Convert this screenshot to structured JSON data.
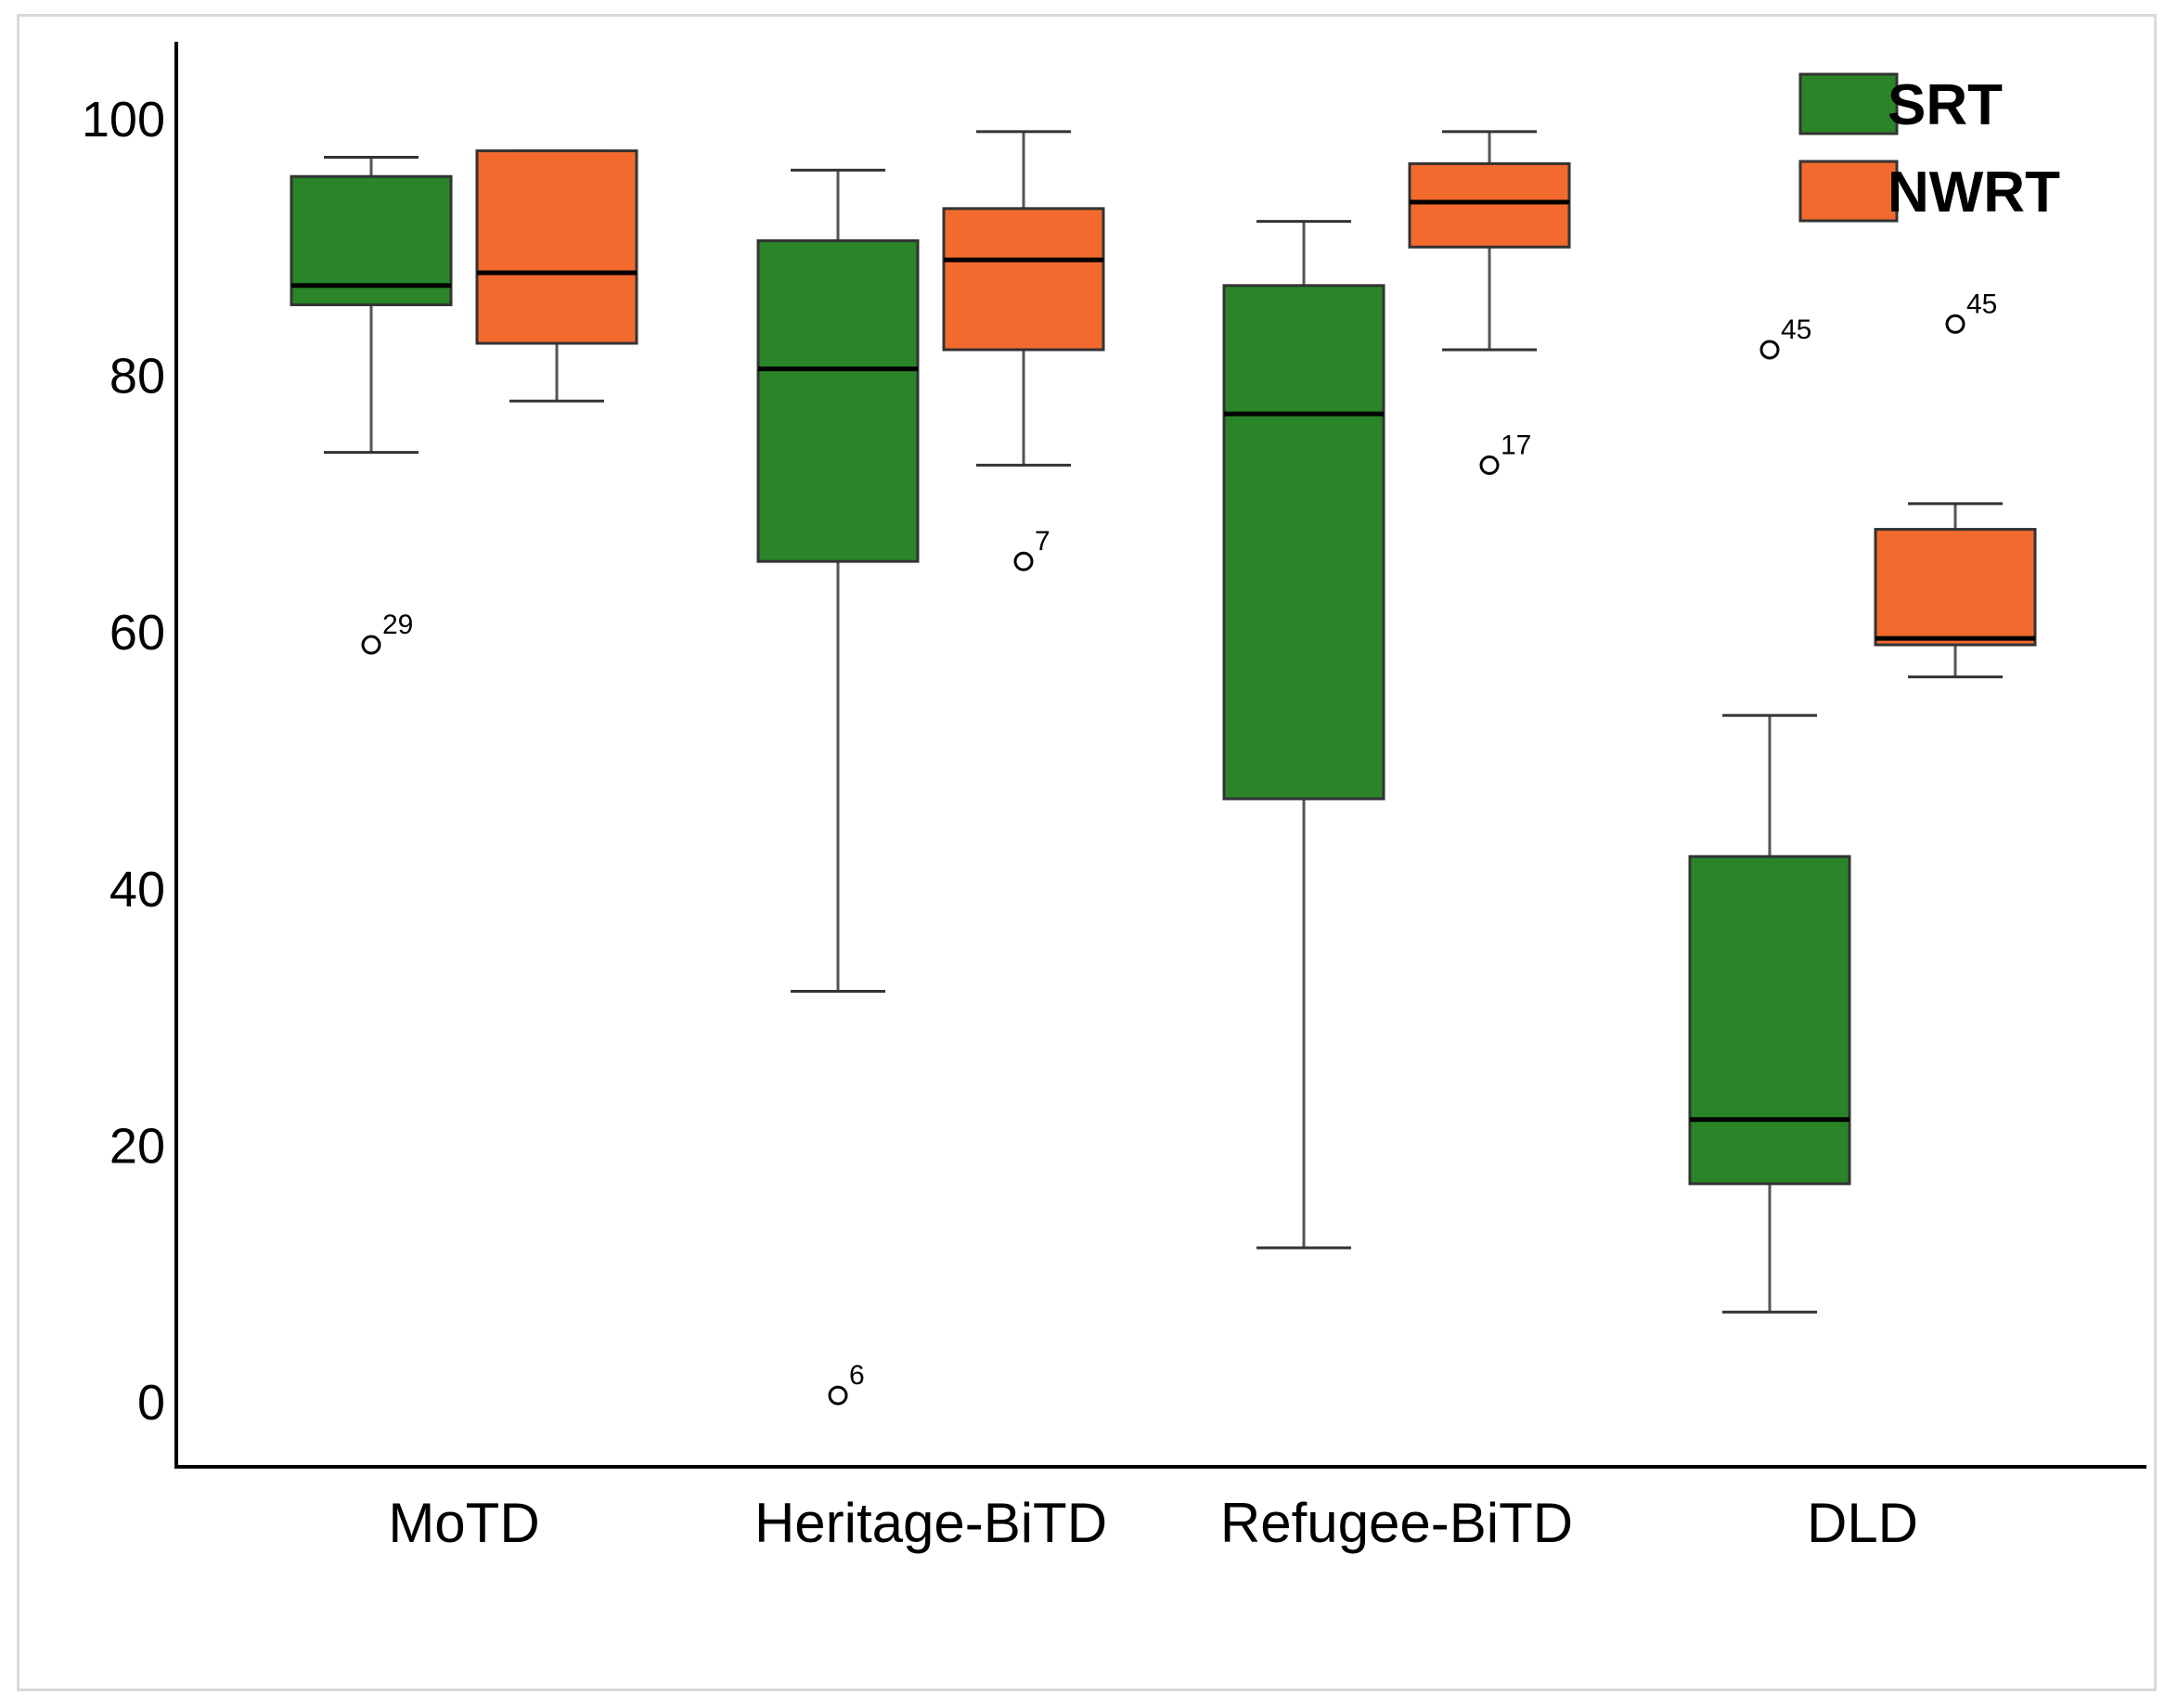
{
  "chart_data": {
    "type": "boxplot",
    "title": "",
    "xlabel": "",
    "ylabel": "",
    "ylim": [
      -5,
      105
    ],
    "yticks": [
      0,
      20,
      40,
      60,
      80,
      100
    ],
    "categories": [
      "MoTD",
      "Heritage-BiTD",
      "Refugee-BiTD",
      "DLD"
    ],
    "legend_position": "top-right",
    "series": [
      {
        "name": "SRT",
        "color": "#2a8428",
        "boxes": [
          {
            "category": "MoTD",
            "whisker_low": 74,
            "q1": 85.5,
            "median": 87,
            "q3": 95.5,
            "whisker_high": 97,
            "outliers": [
              {
                "value": 59,
                "label": "29"
              }
            ]
          },
          {
            "category": "Heritage-BiTD",
            "whisker_low": 32,
            "q1": 65.5,
            "median": 80.5,
            "q3": 90.5,
            "whisker_high": 96,
            "outliers": [
              {
                "value": 0.5,
                "label": "6"
              }
            ]
          },
          {
            "category": "Refugee-BiTD",
            "whisker_low": 12,
            "q1": 47,
            "median": 77,
            "q3": 87,
            "whisker_high": 92,
            "outliers": []
          },
          {
            "category": "DLD",
            "whisker_low": 7,
            "q1": 17,
            "median": 22,
            "q3": 42.5,
            "whisker_high": 53.5,
            "outliers": [
              {
                "value": 82,
                "label": "45"
              }
            ]
          }
        ]
      },
      {
        "name": "NWRT",
        "color": "#f26a2d",
        "boxes": [
          {
            "category": "MoTD",
            "whisker_low": 78,
            "q1": 82.5,
            "median": 88,
            "q3": 97.5,
            "whisker_high": 97.5,
            "outliers": []
          },
          {
            "category": "Heritage-BiTD",
            "whisker_low": 73,
            "q1": 82,
            "median": 89,
            "q3": 93,
            "whisker_high": 99,
            "outliers": [
              {
                "value": 65.5,
                "label": "7"
              }
            ]
          },
          {
            "category": "Refugee-BiTD",
            "whisker_low": 82,
            "q1": 90,
            "median": 93.5,
            "q3": 96.5,
            "whisker_high": 99,
            "outliers": [
              {
                "value": 73,
                "label": "17"
              }
            ]
          },
          {
            "category": "DLD",
            "whisker_low": 56.5,
            "q1": 59,
            "median": 59.5,
            "q3": 68,
            "whisker_high": 70,
            "outliers": [
              {
                "value": 84,
                "label": "45"
              }
            ]
          }
        ]
      }
    ]
  }
}
